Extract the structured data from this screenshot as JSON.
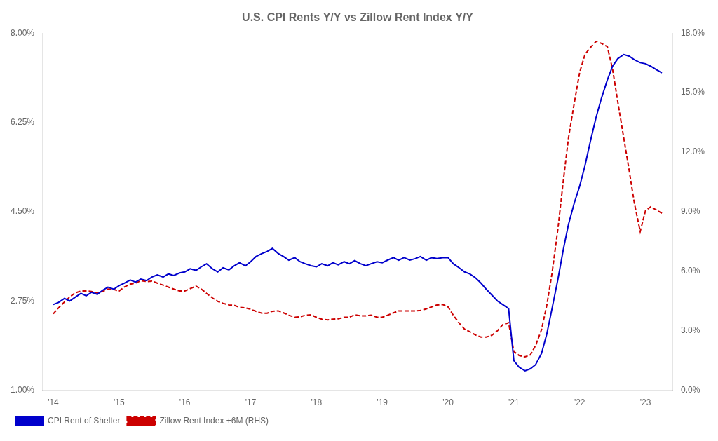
{
  "chart_data": {
    "type": "line",
    "title": "U.S. CPI Rents Y/Y vs Zillow Rent Index Y/Y",
    "series": [
      {
        "name": "CPI Rent of Shelter",
        "color": "#0000CC",
        "line_style": "solid",
        "x": [
          2014.0,
          2014.08,
          2014.17,
          2014.25,
          2014.33,
          2014.42,
          2014.5,
          2014.58,
          2014.67,
          2014.75,
          2014.83,
          2014.92,
          2015.0,
          2015.08,
          2015.17,
          2015.25,
          2015.33,
          2015.42,
          2015.5,
          2015.58,
          2015.67,
          2015.75,
          2015.83,
          2015.92,
          2016.0,
          2016.08,
          2016.17,
          2016.25,
          2016.33,
          2016.42,
          2016.5,
          2016.58,
          2016.67,
          2016.75,
          2016.83,
          2016.92,
          2017.0,
          2017.08,
          2017.17,
          2017.25,
          2017.33,
          2017.42,
          2017.5,
          2017.58,
          2017.67,
          2017.75,
          2017.83,
          2017.92,
          2018.0,
          2018.08,
          2018.17,
          2018.25,
          2018.33,
          2018.42,
          2018.5,
          2018.58,
          2018.67,
          2018.75,
          2018.83,
          2018.92,
          2019.0,
          2019.08,
          2019.17,
          2019.25,
          2019.33,
          2019.42,
          2019.5,
          2019.58,
          2019.67,
          2019.75,
          2019.83,
          2019.92,
          2020.0,
          2020.08,
          2020.17,
          2020.25,
          2020.33,
          2020.42,
          2020.5,
          2020.58,
          2020.67,
          2020.75,
          2020.83,
          2020.92,
          2021.0,
          2021.08,
          2021.17,
          2021.25,
          2021.33,
          2021.42,
          2021.5,
          2021.58,
          2021.67,
          2021.75,
          2021.83,
          2021.92,
          2022.0,
          2022.08,
          2022.17,
          2022.25,
          2022.33,
          2022.42,
          2022.5,
          2022.58,
          2022.67,
          2022.75,
          2022.83,
          2022.92,
          2023.0,
          2023.08,
          2023.17,
          2023.25
        ],
        "values": [
          0.0268,
          0.0272,
          0.028,
          0.0275,
          0.0282,
          0.029,
          0.0285,
          0.0292,
          0.0288,
          0.0296,
          0.0302,
          0.0298,
          0.0305,
          0.031,
          0.0316,
          0.0312,
          0.0318,
          0.0315,
          0.0322,
          0.0326,
          0.0322,
          0.0328,
          0.0325,
          0.033,
          0.0332,
          0.0338,
          0.0335,
          0.0342,
          0.0348,
          0.0338,
          0.0332,
          0.034,
          0.0336,
          0.0344,
          0.035,
          0.0344,
          0.0352,
          0.0362,
          0.0368,
          0.0372,
          0.0378,
          0.0368,
          0.0362,
          0.0355,
          0.036,
          0.0352,
          0.0348,
          0.0344,
          0.0342,
          0.0348,
          0.0344,
          0.035,
          0.0346,
          0.0352,
          0.0348,
          0.0354,
          0.0348,
          0.0344,
          0.0348,
          0.0352,
          0.035,
          0.0355,
          0.036,
          0.0355,
          0.036,
          0.0355,
          0.0358,
          0.0362,
          0.0355,
          0.036,
          0.0358,
          0.036,
          0.036,
          0.0348,
          0.034,
          0.0332,
          0.0328,
          0.032,
          0.031,
          0.0298,
          0.0286,
          0.0275,
          0.0268,
          0.026,
          0.0158,
          0.0145,
          0.0138,
          0.0142,
          0.015,
          0.0172,
          0.021,
          0.026,
          0.0318,
          0.0375,
          0.0425,
          0.0468,
          0.05,
          0.054,
          0.0592,
          0.0635,
          0.0672,
          0.0708,
          0.0735,
          0.075,
          0.0758,
          0.0755,
          0.0748,
          0.0742,
          0.074,
          0.0735,
          0.0728,
          0.0722
        ]
      },
      {
        "name": "Zillow Rent Index +6M (RHS)",
        "color": "#CC0000",
        "line_style": "dashed",
        "axis": "y2",
        "x": [
          2014.0,
          2014.08,
          2014.17,
          2014.25,
          2014.33,
          2014.42,
          2014.5,
          2014.58,
          2014.67,
          2014.75,
          2014.83,
          2014.92,
          2015.0,
          2015.08,
          2015.17,
          2015.25,
          2015.33,
          2015.42,
          2015.5,
          2015.58,
          2015.67,
          2015.75,
          2015.83,
          2015.92,
          2016.0,
          2016.08,
          2016.17,
          2016.25,
          2016.33,
          2016.42,
          2016.5,
          2016.58,
          2016.67,
          2016.75,
          2016.83,
          2016.92,
          2017.0,
          2017.08,
          2017.17,
          2017.25,
          2017.33,
          2017.42,
          2017.5,
          2017.58,
          2017.67,
          2017.75,
          2017.83,
          2017.92,
          2018.0,
          2018.08,
          2018.17,
          2018.25,
          2018.33,
          2018.42,
          2018.5,
          2018.58,
          2018.67,
          2018.75,
          2018.83,
          2018.92,
          2019.0,
          2019.08,
          2019.17,
          2019.25,
          2019.33,
          2019.42,
          2019.5,
          2019.58,
          2019.67,
          2019.75,
          2019.83,
          2019.92,
          2020.0,
          2020.08,
          2020.17,
          2020.25,
          2020.33,
          2020.42,
          2020.5,
          2020.58,
          2020.67,
          2020.75,
          2020.83,
          2020.92,
          2021.0,
          2021.08,
          2021.17,
          2021.25,
          2021.33,
          2021.42,
          2021.5,
          2021.58,
          2021.67,
          2021.75,
          2021.83,
          2021.92,
          2022.0,
          2022.08,
          2022.17,
          2022.25,
          2022.33,
          2022.42,
          2022.5,
          2022.58,
          2022.67,
          2022.75,
          2022.83,
          2022.92,
          2023.0,
          2023.08,
          2023.25
        ],
        "values": [
          0.0385,
          0.0415,
          0.0445,
          0.047,
          0.049,
          0.05,
          0.05,
          0.0498,
          0.049,
          0.0498,
          0.051,
          0.0508,
          0.05,
          0.052,
          0.0535,
          0.054,
          0.0552,
          0.0548,
          0.055,
          0.054,
          0.053,
          0.052,
          0.051,
          0.05,
          0.05,
          0.0512,
          0.0525,
          0.051,
          0.0488,
          0.0465,
          0.0448,
          0.0438,
          0.043,
          0.0428,
          0.0418,
          0.0415,
          0.0408,
          0.0398,
          0.0388,
          0.0388,
          0.0398,
          0.04,
          0.039,
          0.0378,
          0.0368,
          0.037,
          0.0378,
          0.038,
          0.0368,
          0.0358,
          0.0355,
          0.0358,
          0.036,
          0.0368,
          0.0368,
          0.038,
          0.0375,
          0.0375,
          0.0378,
          0.0368,
          0.0368,
          0.0378,
          0.039,
          0.04,
          0.04,
          0.04,
          0.04,
          0.0402,
          0.041,
          0.042,
          0.043,
          0.0432,
          0.042,
          0.0378,
          0.0338,
          0.0308,
          0.0295,
          0.0278,
          0.0268,
          0.0268,
          0.0278,
          0.03,
          0.033,
          0.034,
          0.0195,
          0.0175,
          0.0168,
          0.0178,
          0.0225,
          0.0305,
          0.0428,
          0.059,
          0.0815,
          0.1052,
          0.1272,
          0.1452,
          0.1602,
          0.1692,
          0.173,
          0.1758,
          0.1748,
          0.1732,
          0.1618,
          0.1452,
          0.1272,
          0.1112,
          0.0945,
          0.08,
          0.0905,
          0.0925,
          0.0892
        ]
      }
    ],
    "xlim": [
      2013.83,
      2023.42
    ],
    "xticks": [
      {
        "value": 2014,
        "label": "'14"
      },
      {
        "value": 2015,
        "label": "'15"
      },
      {
        "value": 2016,
        "label": "'16"
      },
      {
        "value": 2017,
        "label": "'17"
      },
      {
        "value": 2018,
        "label": "'18"
      },
      {
        "value": 2019,
        "label": "'19"
      },
      {
        "value": 2020,
        "label": "'20"
      },
      {
        "value": 2021,
        "label": "'21"
      },
      {
        "value": 2022,
        "label": "'22"
      },
      {
        "value": 2023,
        "label": "'23"
      }
    ],
    "ylim": [
      0.01,
      0.08
    ],
    "yticks": [
      {
        "value": 0.01,
        "label": "1.00%"
      },
      {
        "value": 0.0275,
        "label": "2.75%"
      },
      {
        "value": 0.045,
        "label": "4.50%"
      },
      {
        "value": 0.0625,
        "label": "6.25%"
      },
      {
        "value": 0.08,
        "label": "8.00%"
      }
    ],
    "y2lim": [
      0.0,
      0.18
    ],
    "y2ticks": [
      {
        "value": 0.0,
        "label": "0.0%"
      },
      {
        "value": 0.03,
        "label": "3.0%"
      },
      {
        "value": 0.06,
        "label": "6.0%"
      },
      {
        "value": 0.09,
        "label": "9.0%"
      },
      {
        "value": 0.12,
        "label": "12.0%"
      },
      {
        "value": 0.15,
        "label": "15.0%"
      },
      {
        "value": 0.18,
        "label": "18.0%"
      }
    ],
    "grid": false,
    "legend": "lower left"
  }
}
